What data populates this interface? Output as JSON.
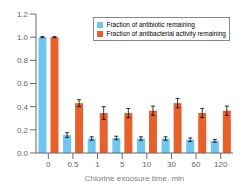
{
  "chart_data": {
    "type": "bar",
    "xlabel": "Chlorine exposure time, min",
    "categories": [
      "0",
      "0.5",
      "1",
      "5",
      "10",
      "30",
      "60",
      "120"
    ],
    "series": [
      {
        "name": "Fraction of antibiotic remaining",
        "color": "#6EC6F0",
        "values": [
          1.0,
          0.155,
          0.125,
          0.13,
          0.125,
          0.125,
          0.115,
          0.105
        ],
        "errors": [
          0.005,
          0.02,
          0.015,
          0.015,
          0.015,
          0.015,
          0.015,
          0.012
        ]
      },
      {
        "name": "Fraction of antibacterial activity remaining",
        "color": "#E8612C",
        "values": [
          1.0,
          0.43,
          0.345,
          0.345,
          0.365,
          0.43,
          0.345,
          0.365
        ],
        "errors": [
          0.005,
          0.03,
          0.055,
          0.04,
          0.04,
          0.04,
          0.04,
          0.04
        ]
      }
    ],
    "ylim": [
      0,
      1.2
    ],
    "yticks": [
      {
        "value": 0,
        "label": "0.0"
      },
      0.2,
      0.4,
      0.6,
      0.8,
      {
        "value": 1.0,
        "label": "1.0"
      },
      1.2
    ],
    "grid": false,
    "legend": "upper right"
  }
}
